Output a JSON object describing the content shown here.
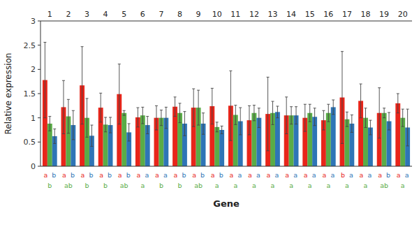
{
  "chart_data": {
    "type": "bar",
    "xlabel": "Gene",
    "ylabel": "Relative expression",
    "categories": [
      "1",
      "2",
      "3",
      "4",
      "5",
      "6",
      "7",
      "8",
      "9",
      "10",
      "11",
      "12",
      "13",
      "14",
      "15",
      "16",
      "17",
      "18",
      "19",
      "20"
    ],
    "series": [
      {
        "color": "#e8251a",
        "values": [
          1.78,
          1.22,
          1.67,
          1.21,
          1.49,
          1.01,
          1.0,
          1.23,
          1.21,
          1.24,
          1.25,
          0.95,
          1.08,
          1.05,
          1.0,
          0.95,
          1.42,
          1.35,
          1.1,
          1.3
        ],
        "errors": [
          0.78,
          0.55,
          0.8,
          0.3,
          0.62,
          0.2,
          0.25,
          0.2,
          0.39,
          0.37,
          0.72,
          0.3,
          0.76,
          0.38,
          0.28,
          0.2,
          0.95,
          0.35,
          0.52,
          0.2
        ],
        "letters": [
          "a",
          "a",
          "a",
          "a",
          "a",
          "a",
          "a",
          "a",
          "a",
          "a",
          "a",
          "a",
          "a",
          "a",
          "a",
          "a",
          "b",
          "a",
          "a",
          "a"
        ]
      },
      {
        "color": "#5aac47",
        "values": [
          0.88,
          1.03,
          1.0,
          0.86,
          1.1,
          1.05,
          1.0,
          1.1,
          1.21,
          0.81,
          1.06,
          1.1,
          1.1,
          1.05,
          1.1,
          1.1,
          0.97,
          1.0,
          1.1,
          1.0
        ],
        "errors": [
          0.15,
          0.35,
          0.4,
          0.15,
          0.05,
          0.17,
          0.16,
          0.2,
          0.36,
          0.1,
          0.2,
          0.16,
          0.24,
          0.18,
          0.18,
          0.18,
          0.15,
          0.2,
          0.1,
          0.18
        ],
        "letters": [
          "b",
          "ab",
          "b",
          "b",
          "ab",
          "a",
          "b",
          "b",
          "ab",
          "a",
          "a",
          "a",
          "a",
          "a",
          "a",
          "a",
          "a",
          "a",
          "ab",
          "a"
        ]
      },
      {
        "color": "#2e75b6",
        "values": [
          0.62,
          0.85,
          0.63,
          0.85,
          0.7,
          0.85,
          1.0,
          0.88,
          0.88,
          0.75,
          0.93,
          1.0,
          1.12,
          1.05,
          1.02,
          1.22,
          0.88,
          0.8,
          0.93,
          0.8
        ],
        "errors": [
          0.15,
          0.3,
          0.22,
          0.16,
          0.18,
          0.18,
          0.22,
          0.25,
          0.22,
          0.08,
          0.28,
          0.2,
          0.12,
          0.18,
          0.18,
          0.15,
          0.18,
          0.15,
          0.18,
          0.38
        ],
        "letters": [
          "b",
          "b",
          "b",
          "b",
          "b",
          "a",
          "a",
          "b",
          "b",
          "b",
          "a",
          "a",
          "a",
          "a",
          "a",
          "a",
          "a",
          "a",
          "b",
          "a"
        ]
      }
    ],
    "ylim": [
      0,
      3.0
    ],
    "yticks": [
      0,
      0.5,
      1.0,
      1.5,
      2.0,
      2.5,
      3.0
    ],
    "grid": false
  }
}
